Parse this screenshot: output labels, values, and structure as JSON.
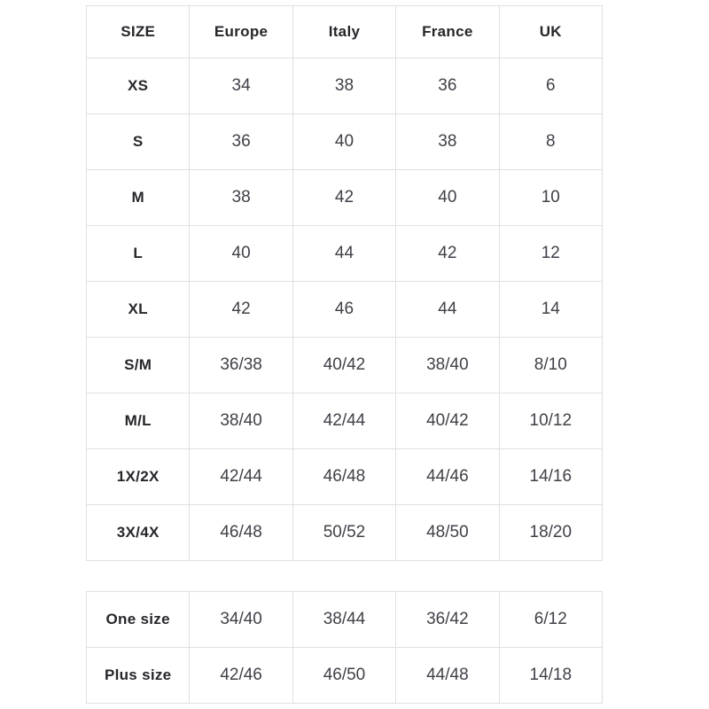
{
  "colors": {
    "background": "#ffffff",
    "border": "#e0e0e0",
    "header_text": "#26262b",
    "value_text": "#404049"
  },
  "chart_data": {
    "type": "table",
    "title": "",
    "columns": [
      "SIZE",
      "Europe",
      "Italy",
      "France",
      "UK"
    ],
    "rows": [
      [
        "XS",
        "34",
        "38",
        "36",
        "6"
      ],
      [
        "S",
        "36",
        "40",
        "38",
        "8"
      ],
      [
        "M",
        "38",
        "42",
        "40",
        "10"
      ],
      [
        "L",
        "40",
        "44",
        "42",
        "12"
      ],
      [
        "XL",
        "42",
        "46",
        "44",
        "14"
      ],
      [
        "S/M",
        "36/38",
        "40/42",
        "38/40",
        "8/10"
      ],
      [
        "M/L",
        "38/40",
        "42/44",
        "40/42",
        "10/12"
      ],
      [
        "1X/2X",
        "42/44",
        "46/48",
        "44/46",
        "14/16"
      ],
      [
        "3X/4X",
        "46/48",
        "50/52",
        "48/50",
        "18/20"
      ]
    ],
    "footer_rows": [
      [
        "One size",
        "34/40",
        "38/44",
        "36/42",
        "6/12"
      ],
      [
        "Plus size",
        "42/46",
        "46/50",
        "44/48",
        "14/18"
      ]
    ]
  }
}
